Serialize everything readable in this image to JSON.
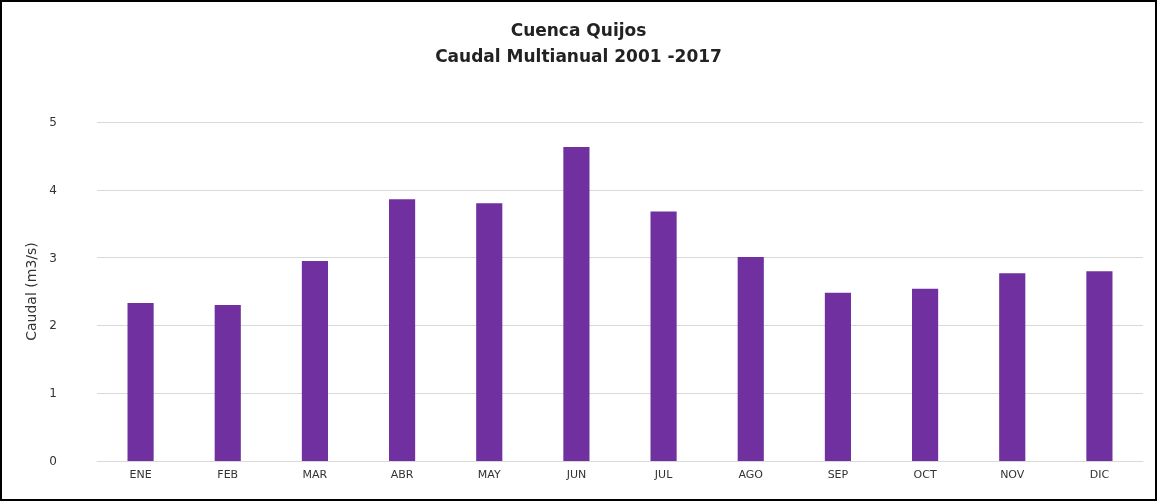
{
  "chart_data": {
    "type": "bar",
    "title": "Cuenca Quijos\nCaudal Multianual 2001 -2017",
    "ylabel": "Caudal (m3/s)",
    "categories": [
      "ENE",
      "FEB",
      "MAR",
      "ABR",
      "MAY",
      "JUN",
      "JUL",
      "AGO",
      "SEP",
      "OCT",
      "NOV",
      "DIC"
    ],
    "values": [
      2.33,
      2.3,
      2.95,
      3.86,
      3.8,
      4.63,
      3.68,
      3.01,
      2.48,
      2.54,
      2.77,
      2.8
    ],
    "color": "#7030a0",
    "ylim": [
      0,
      5
    ],
    "yticks": [
      0,
      1,
      2,
      3,
      4,
      5
    ],
    "grid": true
  }
}
